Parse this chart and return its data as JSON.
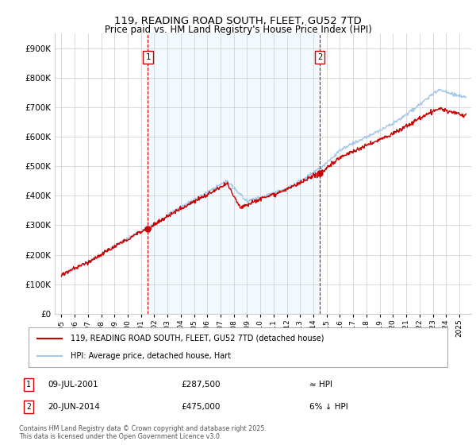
{
  "title": "119, READING ROAD SOUTH, FLEET, GU52 7TD",
  "subtitle": "Price paid vs. HM Land Registry's House Price Index (HPI)",
  "legend_line1": "119, READING ROAD SOUTH, FLEET, GU52 7TD (detached house)",
  "legend_line2": "HPI: Average price, detached house, Hart",
  "annotation1_label": "1",
  "annotation1_date": "09-JUL-2001",
  "annotation1_price": "£287,500",
  "annotation1_hpi": "≈ HPI",
  "annotation2_label": "2",
  "annotation2_date": "20-JUN-2014",
  "annotation2_price": "£475,000",
  "annotation2_hpi": "6% ↓ HPI",
  "footnote": "Contains HM Land Registry data © Crown copyright and database right 2025.\nThis data is licensed under the Open Government Licence v3.0.",
  "hpi_color": "#a8c8e8",
  "hpi_fill_color": "#ddeeff",
  "price_color": "#cc0000",
  "vline_color": "#cc0000",
  "background_color": "#ffffff",
  "grid_color": "#cccccc",
  "ylim_min": 0,
  "ylim_max": 950000,
  "purchase1_year": 2001.52,
  "purchase1_value": 287500,
  "purchase2_year": 2014.47,
  "purchase2_value": 475000
}
